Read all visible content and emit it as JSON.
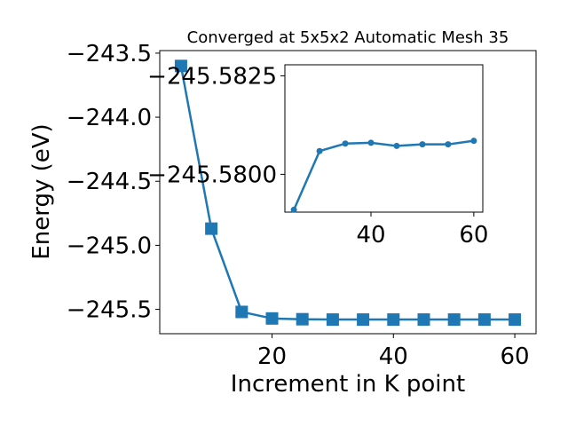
{
  "chart_data": [
    {
      "type": "line",
      "title": "Converged at 5x5x2 Automatic Mesh 35",
      "xlabel": "Increment in K point",
      "ylabel": "Energy (eV)",
      "x": [
        5,
        10,
        15,
        20,
        25,
        30,
        35,
        40,
        45,
        50,
        55,
        60
      ],
      "series": [
        {
          "values": [
            -243.6,
            -244.87,
            -245.52,
            -245.571,
            -245.577,
            -245.5795,
            -245.5795,
            -245.5795,
            -245.5795,
            -245.5795,
            -245.5795,
            -245.5795
          ],
          "color": "#1f77b4",
          "marker": "square"
        }
      ],
      "xlim": [
        1.5,
        63.5
      ],
      "ylim": [
        -245.69,
        -243.48
      ],
      "xticks": [
        20,
        40,
        60
      ],
      "xtick_labels": [
        "20",
        "40",
        "60"
      ],
      "yticks": [
        -245.5,
        -245.0,
        -244.5,
        -244.0,
        -243.5
      ],
      "ytick_labels": [
        "−245.5",
        "−245.0",
        "−244.5",
        "−244.0",
        "−243.5"
      ],
      "grid": false,
      "legend": "none"
    },
    {
      "type": "line",
      "title": "",
      "xlabel": "",
      "ylabel": "",
      "x": [
        25,
        30,
        35,
        40,
        45,
        50,
        55,
        60
      ],
      "series": [
        {
          "values": [
            -245.5791,
            -245.58059,
            -245.58078,
            -245.5808,
            -245.58072,
            -245.58076,
            -245.58076,
            -245.58085
          ],
          "color": "#1f77b4",
          "marker": "circle"
        }
      ],
      "xlim": [
        23.25,
        61.75
      ],
      "ylim": [
        -245.57904,
        -245.58278
      ],
      "xticks": [
        40,
        60
      ],
      "xtick_labels": [
        "40",
        "60"
      ],
      "yticks": [
        -245.58,
        -245.5825
      ],
      "ytick_labels": [
        "−245.5800",
        "−245.5825"
      ],
      "grid": false,
      "legend": "none"
    }
  ]
}
